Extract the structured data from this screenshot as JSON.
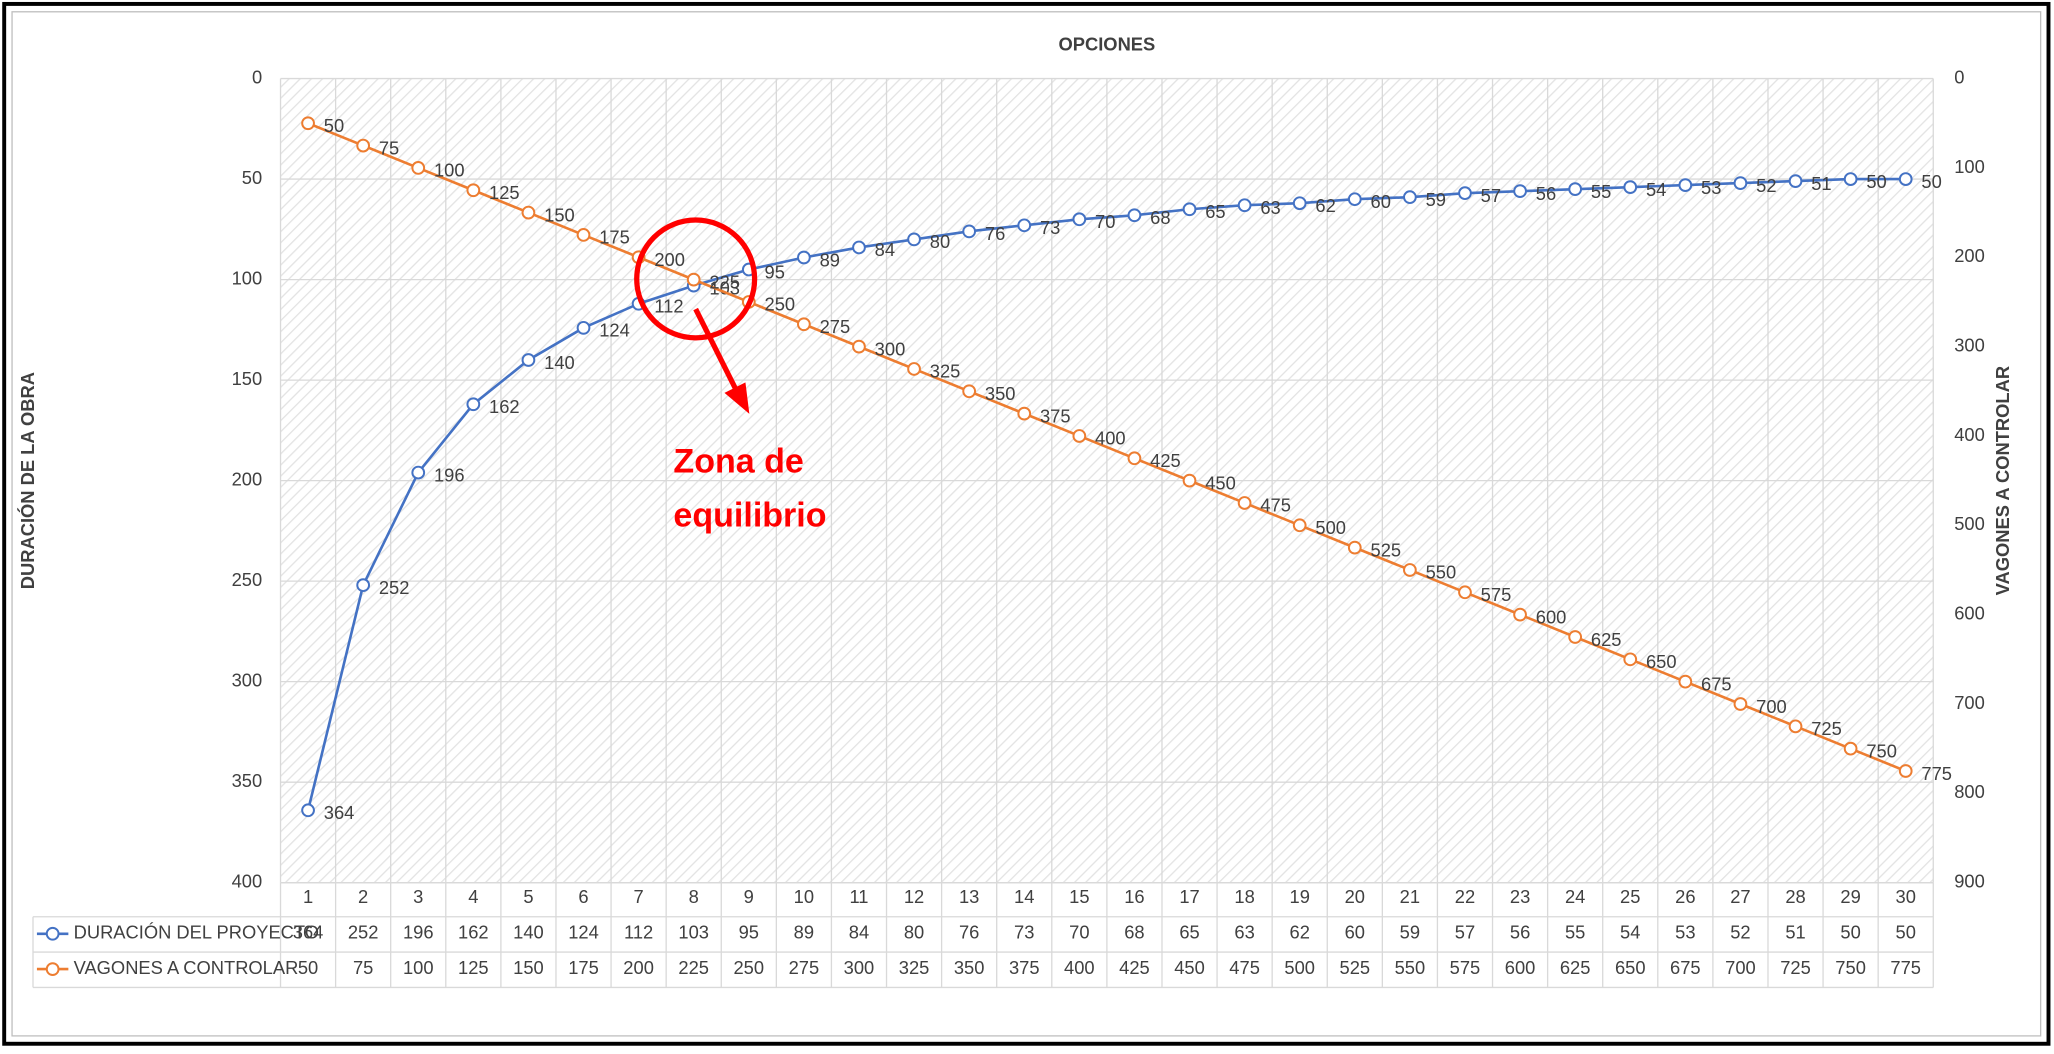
{
  "chart_data": {
    "type": "line",
    "title": "OPCIONES",
    "y_label": "DURACIÓN DE LA OBRA",
    "y2_label": "VAGONES A CONTROLAR",
    "categories": [
      1,
      2,
      3,
      4,
      5,
      6,
      7,
      8,
      9,
      10,
      11,
      12,
      13,
      14,
      15,
      16,
      17,
      18,
      19,
      20,
      21,
      22,
      23,
      24,
      25,
      26,
      27,
      28,
      29,
      30
    ],
    "series": [
      {
        "name": "DURACIÓN DEL PROYECTO",
        "color": "#4472c4",
        "axis": "y",
        "values": [
          364,
          252,
          196,
          162,
          140,
          124,
          112,
          103,
          95,
          89,
          84,
          80,
          76,
          73,
          70,
          68,
          65,
          63,
          62,
          60,
          59,
          57,
          56,
          55,
          54,
          53,
          52,
          51,
          50,
          50
        ]
      },
      {
        "name": "VAGONES A CONTROLAR",
        "color": "#ed7d31",
        "axis": "y2",
        "values": [
          50,
          75,
          100,
          125,
          150,
          175,
          200,
          225,
          250,
          275,
          300,
          325,
          350,
          375,
          400,
          425,
          450,
          475,
          500,
          525,
          550,
          575,
          600,
          625,
          650,
          675,
          700,
          725,
          750,
          775
        ]
      }
    ],
    "ylim": [
      0,
      400
    ],
    "yticks": [
      0,
      50,
      100,
      150,
      200,
      250,
      300,
      350,
      400
    ],
    "y_reversed": true,
    "y2lim": [
      0,
      900
    ],
    "y2ticks": [
      0,
      100,
      200,
      300,
      400,
      500,
      600,
      700,
      800,
      900
    ],
    "y2_reversed": true,
    "grid": true,
    "data_table": true,
    "annotation": {
      "lines": [
        "Zona de",
        "equilibrio"
      ],
      "color": "#ff0000"
    }
  }
}
